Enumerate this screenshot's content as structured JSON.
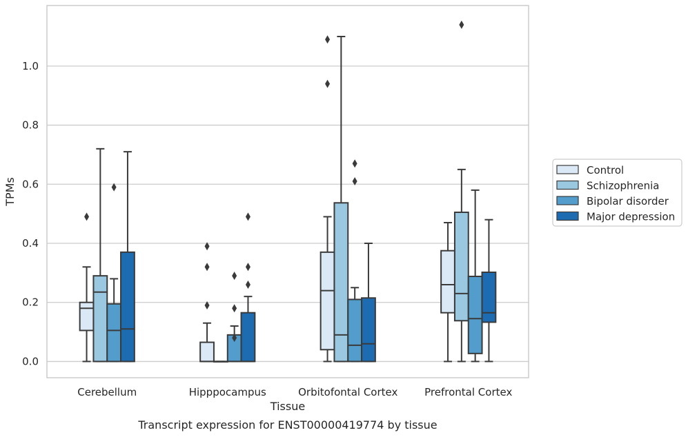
{
  "chart_data": {
    "type": "box",
    "title": "Transcript expression for ENST00000419774 by tissue",
    "xlabel": "Tissue",
    "ylabel": "TPMs",
    "ylim": [
      -0.055,
      1.205
    ],
    "yticks": [
      0.0,
      0.2,
      0.4,
      0.6,
      0.8,
      1.0
    ],
    "grid": "horizontal",
    "legend_position": "right",
    "categories": [
      "Cerebellum",
      "Hipppocampus",
      "Orbitofontal Cortex",
      "Prefrontal Cortex"
    ],
    "series": [
      {
        "name": "Control",
        "color": "#dbe9f6",
        "boxes": [
          {
            "whislo": 0.0,
            "q1": 0.105,
            "median": 0.18,
            "q3": 0.2,
            "whishi": 0.32,
            "fliers": [
              0.49
            ]
          },
          {
            "whislo": 0.0,
            "q1": 0.0,
            "median": 0.0,
            "q3": 0.065,
            "whishi": 0.13,
            "fliers": [
              0.19,
              0.32,
              0.39
            ]
          },
          {
            "whislo": 0.0,
            "q1": 0.04,
            "median": 0.24,
            "q3": 0.37,
            "whishi": 0.49,
            "fliers": [
              0.94,
              1.09
            ]
          },
          {
            "whislo": 0.0,
            "q1": 0.165,
            "median": 0.26,
            "q3": 0.375,
            "whishi": 0.47,
            "fliers": []
          }
        ]
      },
      {
        "name": "Schizophrenia",
        "color": "#9ac8e0",
        "boxes": [
          {
            "whislo": 0.0,
            "q1": 0.0,
            "median": 0.235,
            "q3": 0.29,
            "whishi": 0.72,
            "fliers": []
          },
          {
            "whislo": 0.0,
            "q1": 0.0,
            "median": 0.0,
            "q3": 0.0,
            "whishi": 0.0,
            "fliers": []
          },
          {
            "whislo": 0.0,
            "q1": 0.0,
            "median": 0.09,
            "q3": 0.537,
            "whishi": 1.1,
            "fliers": []
          },
          {
            "whislo": 0.0,
            "q1": 0.138,
            "median": 0.23,
            "q3": 0.505,
            "whishi": 0.65,
            "fliers": [
              1.14
            ]
          }
        ]
      },
      {
        "name": "Bipolar disorder",
        "color": "#529dcc",
        "boxes": [
          {
            "whislo": 0.0,
            "q1": 0.0,
            "median": 0.105,
            "q3": 0.195,
            "whishi": 0.28,
            "fliers": [
              0.59
            ]
          },
          {
            "whislo": 0.0,
            "q1": 0.0,
            "median": 0.0,
            "q3": 0.09,
            "whishi": 0.12,
            "fliers": [
              0.08,
              0.18,
              0.29
            ]
          },
          {
            "whislo": 0.0,
            "q1": 0.0,
            "median": 0.055,
            "q3": 0.21,
            "whishi": 0.25,
            "fliers": [
              0.61,
              0.67
            ]
          },
          {
            "whislo": 0.0,
            "q1": 0.027,
            "median": 0.145,
            "q3": 0.288,
            "whishi": 0.58,
            "fliers": []
          }
        ]
      },
      {
        "name": "Major depression",
        "color": "#1d6cb1",
        "boxes": [
          {
            "whislo": 0.0,
            "q1": 0.0,
            "median": 0.11,
            "q3": 0.37,
            "whishi": 0.71,
            "fliers": []
          },
          {
            "whislo": 0.0,
            "q1": 0.0,
            "median": 0.0,
            "q3": 0.165,
            "whishi": 0.22,
            "fliers": [
              0.26,
              0.32,
              0.49
            ]
          },
          {
            "whislo": 0.0,
            "q1": 0.0,
            "median": 0.06,
            "q3": 0.215,
            "whishi": 0.4,
            "fliers": []
          },
          {
            "whislo": 0.0,
            "q1": 0.133,
            "median": 0.165,
            "q3": 0.302,
            "whishi": 0.48,
            "fliers": []
          }
        ]
      }
    ]
  }
}
